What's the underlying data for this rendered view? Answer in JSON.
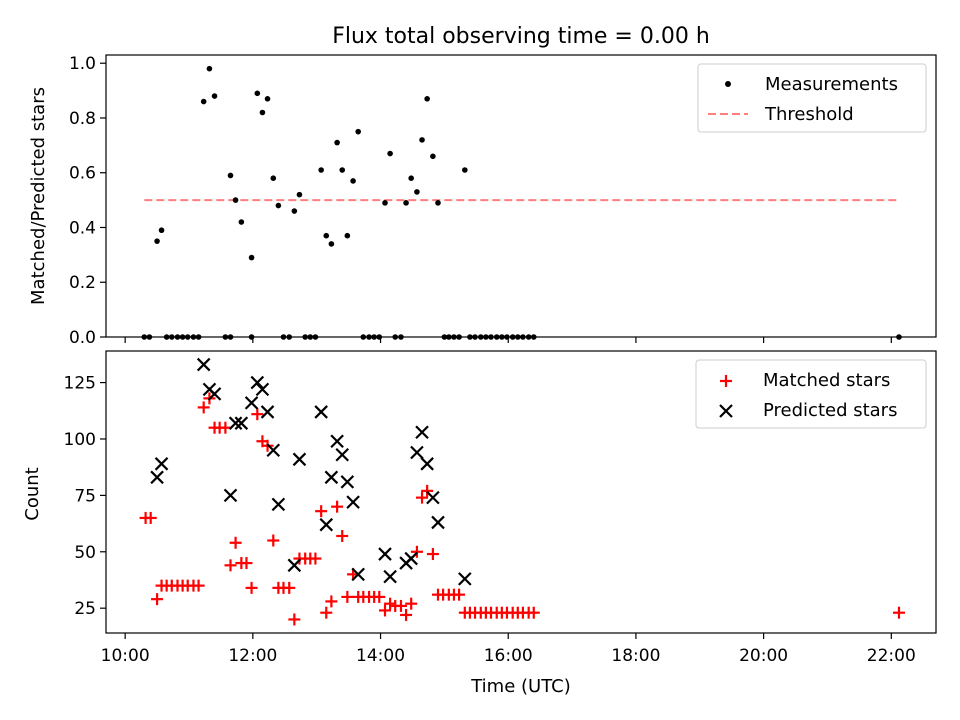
{
  "title": "Flux total observing time = 0.00 h",
  "chart_data": [
    {
      "type": "scatter",
      "ylabel": "Matched/Predicted stars",
      "xlabel": "",
      "x_unit": "hours UTC",
      "xlim": [
        9.7,
        22.7
      ],
      "ylim": [
        0,
        1.03
      ],
      "y_ticks": [
        0.0,
        0.2,
        0.4,
        0.6,
        0.8,
        1.0
      ],
      "y_tick_labels": [
        "0.0",
        "0.2",
        "0.4",
        "0.6",
        "0.8",
        "1.0"
      ],
      "grid": false,
      "legend_position": "top-right",
      "legend": [
        "Measurements",
        "Threshold"
      ],
      "threshold": {
        "name": "Threshold",
        "value": 0.5,
        "x_range": [
          10.3,
          22.1
        ],
        "color": "#ff7f7f"
      },
      "series": [
        {
          "name": "Measurements",
          "marker": "dot",
          "color": "#000000",
          "x": [
            10.5,
            10.57,
            11.23,
            11.32,
            11.4,
            11.65,
            11.73,
            11.82,
            11.98,
            12.07,
            12.15,
            12.23,
            12.32,
            12.4,
            12.65,
            12.73,
            13.07,
            13.15,
            13.23,
            13.32,
            13.4,
            13.48,
            13.57,
            13.65,
            14.07,
            14.15,
            14.4,
            14.48,
            14.57,
            14.65,
            14.73,
            14.82,
            14.9,
            15.32,
            10.3,
            10.38,
            10.65,
            10.73,
            10.82,
            10.9,
            10.98,
            11.07,
            11.15,
            11.57,
            11.65,
            11.98,
            12.48,
            12.57,
            12.82,
            12.9,
            12.98,
            13.73,
            13.82,
            13.9,
            13.98,
            14.23,
            14.32,
            15.0,
            15.07,
            15.15,
            15.23,
            15.4,
            15.48,
            15.57,
            15.65,
            15.73,
            15.82,
            15.9,
            15.98,
            16.07,
            16.15,
            16.23,
            16.32,
            16.4,
            22.12
          ],
          "y": [
            0.35,
            0.39,
            0.86,
            0.98,
            0.88,
            0.59,
            0.5,
            0.42,
            0.29,
            0.89,
            0.82,
            0.87,
            0.58,
            0.48,
            0.46,
            0.52,
            0.61,
            0.37,
            0.34,
            0.71,
            0.61,
            0.37,
            0.57,
            0.75,
            0.49,
            0.67,
            0.49,
            0.58,
            0.53,
            0.72,
            0.87,
            0.66,
            0.49,
            0.61,
            0,
            0,
            0,
            0,
            0,
            0,
            0,
            0,
            0,
            0,
            0,
            0,
            0,
            0,
            0,
            0,
            0,
            0,
            0,
            0,
            0,
            0,
            0,
            0,
            0,
            0,
            0,
            0,
            0,
            0,
            0,
            0,
            0,
            0,
            0,
            0,
            0,
            0,
            0,
            0,
            0
          ]
        }
      ]
    },
    {
      "type": "scatter",
      "ylabel": "Count",
      "xlabel": "Time (UTC)",
      "x_unit": "hours UTC",
      "xlim": [
        9.7,
        22.7
      ],
      "ylim": [
        14,
        139
      ],
      "x_ticks": [
        10,
        12,
        14,
        16,
        18,
        20,
        22
      ],
      "x_tick_labels": [
        "10:00",
        "12:00",
        "14:00",
        "16:00",
        "18:00",
        "20:00",
        "22:00"
      ],
      "y_ticks": [
        25,
        50,
        75,
        100,
        125
      ],
      "y_tick_labels": [
        "25",
        "50",
        "75",
        "100",
        "125"
      ],
      "grid": false,
      "legend_position": "top-right",
      "legend": [
        "Matched stars",
        "Predicted stars"
      ],
      "series": [
        {
          "name": "Matched stars",
          "marker": "plus",
          "color": "#ff0000",
          "x": [
            10.32,
            10.4,
            10.5,
            10.57,
            10.65,
            10.73,
            10.82,
            10.9,
            10.98,
            11.07,
            11.15,
            11.23,
            11.32,
            11.4,
            11.48,
            11.57,
            11.65,
            11.73,
            11.82,
            11.9,
            11.98,
            12.07,
            12.15,
            12.23,
            12.32,
            12.4,
            12.48,
            12.57,
            12.65,
            12.73,
            12.82,
            12.9,
            12.98,
            13.07,
            13.15,
            13.23,
            13.32,
            13.4,
            13.48,
            13.57,
            13.65,
            13.73,
            13.82,
            13.9,
            13.98,
            14.07,
            14.15,
            14.23,
            14.32,
            14.4,
            14.48,
            14.57,
            14.65,
            14.73,
            14.82,
            14.9,
            14.98,
            15.07,
            15.15,
            15.23,
            15.32,
            15.4,
            15.48,
            15.57,
            15.65,
            15.73,
            15.82,
            15.9,
            15.98,
            16.07,
            16.15,
            16.23,
            16.32,
            16.4,
            22.12
          ],
          "y": [
            65,
            65,
            29,
            35,
            35,
            35,
            35,
            35,
            35,
            35,
            35,
            114,
            118,
            105,
            105,
            105,
            44,
            54,
            45,
            45,
            34,
            111,
            99,
            97,
            55,
            34,
            34,
            34,
            20,
            47,
            47,
            47,
            47,
            68,
            23,
            28,
            70,
            57,
            30,
            40,
            30,
            30,
            30,
            30,
            30,
            24,
            27,
            26,
            26,
            22,
            27,
            50,
            74,
            77,
            49,
            31,
            31,
            31,
            31,
            31,
            23,
            23,
            23,
            23,
            23,
            23,
            23,
            23,
            23,
            23,
            23,
            23,
            23,
            23,
            23
          ]
        },
        {
          "name": "Predicted stars",
          "marker": "x",
          "color": "#000000",
          "x": [
            10.5,
            10.57,
            11.23,
            11.32,
            11.4,
            11.65,
            11.73,
            11.82,
            11.98,
            12.07,
            12.15,
            12.23,
            12.32,
            12.4,
            12.65,
            12.73,
            13.07,
            13.15,
            13.23,
            13.32,
            13.4,
            13.48,
            13.57,
            13.65,
            14.07,
            14.15,
            14.4,
            14.48,
            14.57,
            14.65,
            14.73,
            14.82,
            14.9,
            15.32
          ],
          "y": [
            83,
            89,
            133,
            122,
            120,
            75,
            107,
            107,
            116,
            125,
            122,
            112,
            95,
            71,
            44,
            91,
            112,
            62,
            83,
            99,
            93,
            81,
            72,
            40,
            49,
            39,
            45,
            47,
            94,
            103,
            89,
            74,
            63,
            38
          ]
        }
      ]
    }
  ]
}
